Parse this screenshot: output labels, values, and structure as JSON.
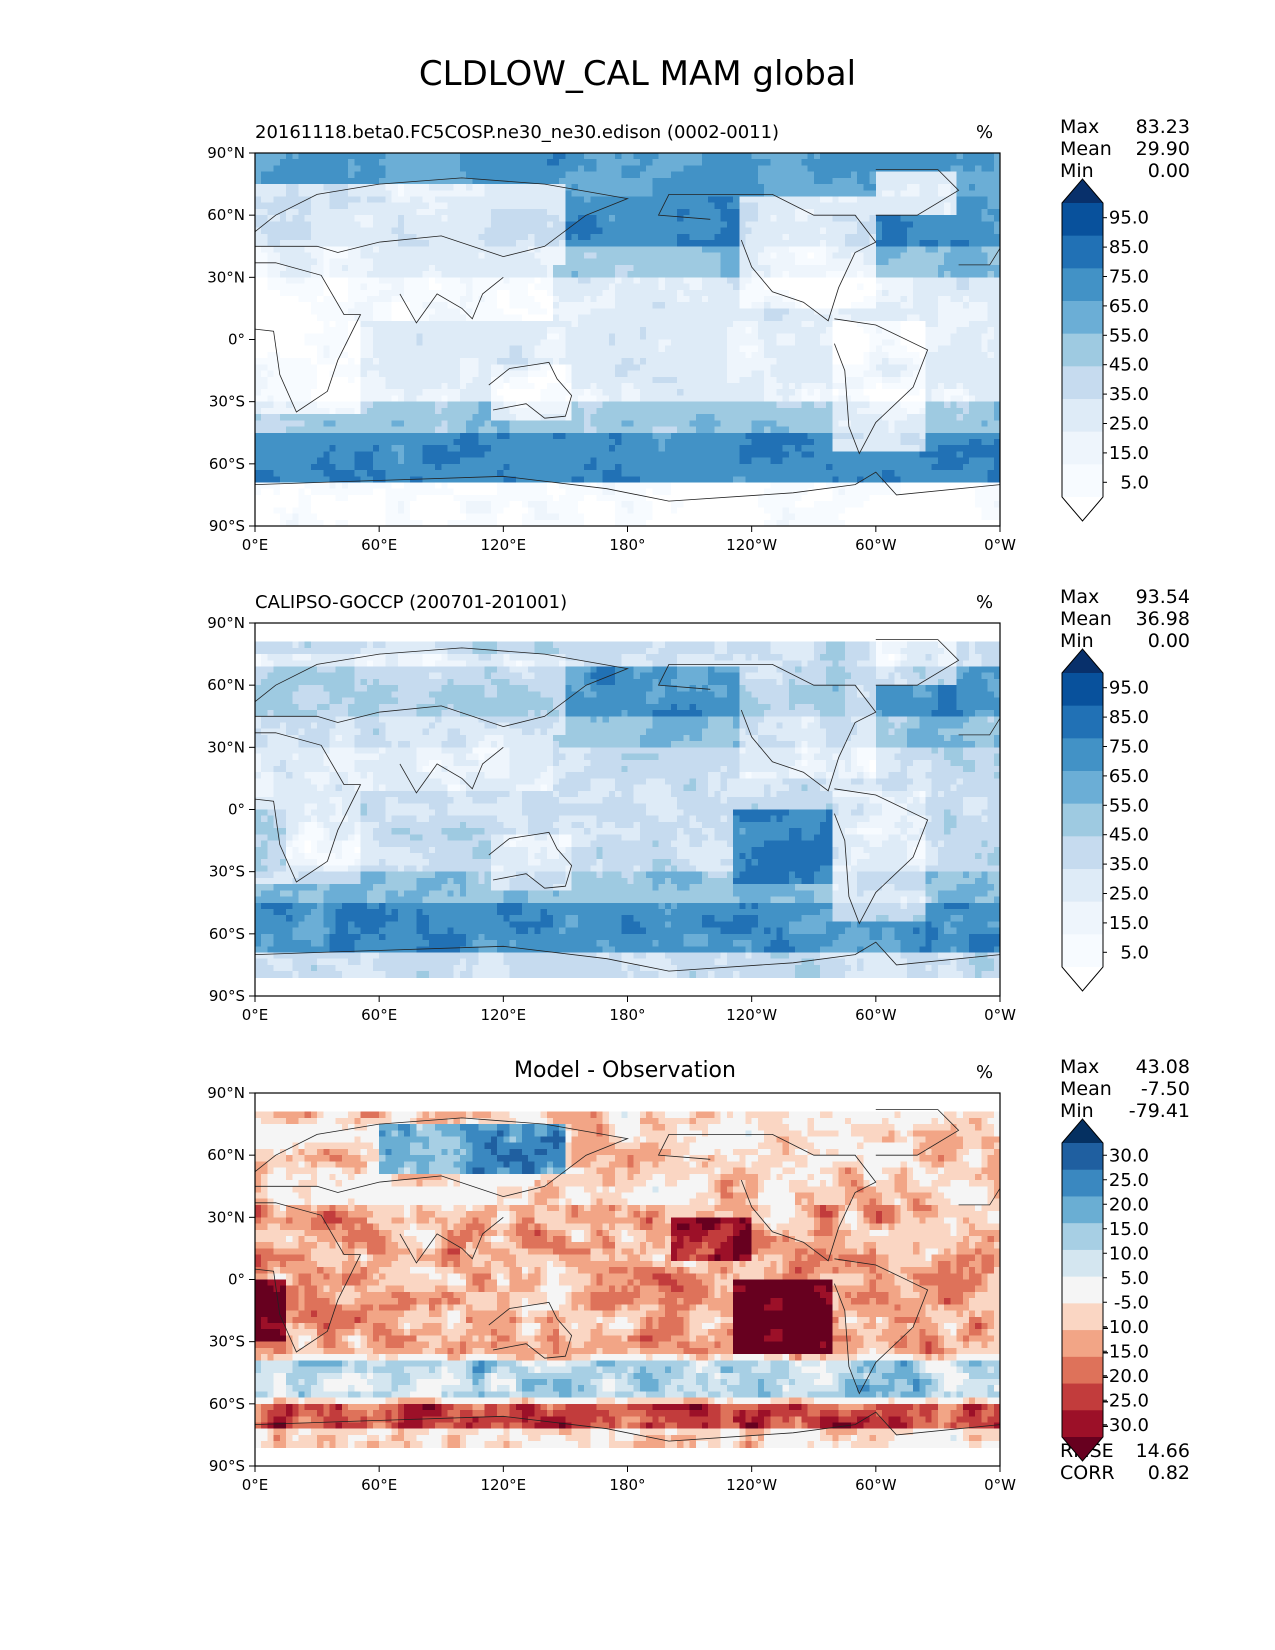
{
  "figure": {
    "title": "CLDLOW_CAL MAM global"
  },
  "chart_data": [
    {
      "type": "heatmap",
      "title": "20161118.beta0.FC5COSP.ne30_ne30.edison (0002-0011)",
      "units": "%",
      "xticks": [
        "0°E",
        "60°E",
        "120°E",
        "180°",
        "120°W",
        "60°W",
        "0°W"
      ],
      "yticks": [
        "90°N",
        "60°N",
        "30°N",
        "0°",
        "30°S",
        "60°S",
        "90°S"
      ],
      "xlim": [
        0,
        360
      ],
      "ylim": [
        -90,
        90
      ],
      "stats": {
        "max_label": "Max",
        "max": "83.23",
        "mean_label": "Mean",
        "mean": "29.90",
        "min_label": "Min",
        "min": "0.00"
      },
      "colorbar": {
        "labels": [
          "95.0",
          "85.0",
          "75.0",
          "65.0",
          "55.0",
          "45.0",
          "35.0",
          "25.0",
          "15.0",
          "5.0"
        ],
        "colors": [
          "#08306b",
          "#08519c",
          "#2171b5",
          "#4292c6",
          "#6baed6",
          "#9ecae1",
          "#c6dbef",
          "#deebf7",
          "#eef5fc",
          "#f7fbff",
          "#ffffff"
        ]
      },
      "field": "model"
    },
    {
      "type": "heatmap",
      "title": "CALIPSO-GOCCP (200701-201001)",
      "units": "%",
      "xticks": [
        "0°E",
        "60°E",
        "120°E",
        "180°",
        "120°W",
        "60°W",
        "0°W"
      ],
      "yticks": [
        "90°N",
        "60°N",
        "30°N",
        "0°",
        "30°S",
        "60°S",
        "90°S"
      ],
      "xlim": [
        0,
        360
      ],
      "ylim": [
        -90,
        90
      ],
      "stats": {
        "max_label": "Max",
        "max": "93.54",
        "mean_label": "Mean",
        "mean": "36.98",
        "min_label": "Min",
        "min": "0.00"
      },
      "colorbar": {
        "labels": [
          "95.0",
          "85.0",
          "75.0",
          "65.0",
          "55.0",
          "45.0",
          "35.0",
          "25.0",
          "15.0",
          "5.0"
        ],
        "colors": [
          "#08306b",
          "#08519c",
          "#2171b5",
          "#4292c6",
          "#6baed6",
          "#9ecae1",
          "#c6dbef",
          "#deebf7",
          "#eef5fc",
          "#f7fbff",
          "#ffffff"
        ]
      },
      "field": "obs"
    },
    {
      "type": "heatmap",
      "title": "Model - Observation",
      "units": "%",
      "xticks": [
        "0°E",
        "60°E",
        "120°E",
        "180°",
        "120°W",
        "60°W",
        "0°W"
      ],
      "yticks": [
        "90°N",
        "60°N",
        "30°N",
        "0°",
        "30°S",
        "60°S",
        "90°S"
      ],
      "xlim": [
        0,
        360
      ],
      "ylim": [
        -90,
        90
      ],
      "stats": {
        "max_label": "Max",
        "max": "43.08",
        "mean_label": "Mean",
        "mean": "-7.50",
        "min_label": "Min",
        "min": "-79.41"
      },
      "extra_stats": {
        "rmse_label": "RMSE",
        "rmse": "14.66",
        "corr_label": "CORR",
        "corr": "0.82"
      },
      "colorbar": {
        "labels": [
          "30.0",
          "25.0",
          "20.0",
          "15.0",
          "10.0",
          "5.0",
          "-5.0",
          "-10.0",
          "-15.0",
          "-20.0",
          "-25.0",
          "-30.0"
        ],
        "colors": [
          "#053061",
          "#1f5fa0",
          "#3a88c0",
          "#6aaed3",
          "#a7cfe4",
          "#d4e6f0",
          "#f5f5f5",
          "#fad6c3",
          "#f2a586",
          "#de725a",
          "#c23c3c",
          "#9c1028",
          "#67001f"
        ]
      },
      "field": "diff"
    }
  ]
}
